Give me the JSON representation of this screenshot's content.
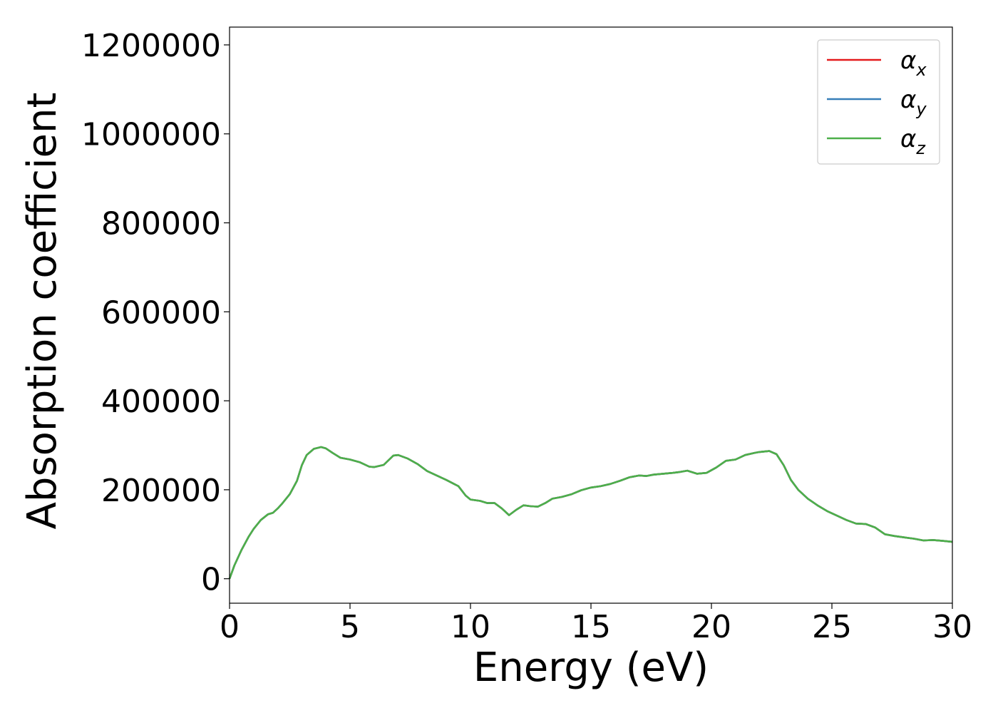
{
  "chart_data": {
    "type": "line",
    "xlabel": "Energy (eV)",
    "ylabel": "Absorption coefficient",
    "xlim": [
      0,
      30
    ],
    "ylim": [
      -55000,
      1240000
    ],
    "xticks": [
      0,
      5,
      10,
      15,
      20,
      25,
      30
    ],
    "xtick_labels": [
      "0",
      "5",
      "10",
      "15",
      "20",
      "25",
      "30"
    ],
    "yticks": [
      0,
      200000,
      400000,
      600000,
      800000,
      1000000,
      1200000
    ],
    "ytick_labels": [
      "0",
      "200000",
      "400000",
      "600000",
      "800000",
      "1000000",
      "1200000"
    ],
    "legend_position": "top-right",
    "grid": false,
    "series": [
      {
        "name": "α_x",
        "base": "α",
        "sub": "x",
        "color": "#e41a1c",
        "x": [
          0,
          0.2,
          0.5,
          0.8,
          1.0,
          1.3,
          1.6,
          1.8,
          2.0,
          2.2,
          2.5,
          2.8,
          3.0,
          3.2,
          3.5,
          3.8,
          4.0,
          4.3,
          4.6,
          5.0,
          5.4,
          5.8,
          6.0,
          6.4,
          6.8,
          7.0,
          7.4,
          7.8,
          8.2,
          8.6,
          9.0,
          9.5,
          9.8,
          10.0,
          10.4,
          10.7,
          11.0,
          11.3,
          11.6,
          11.9,
          12.2,
          12.5,
          12.8,
          13.1,
          13.4,
          13.8,
          14.2,
          14.6,
          15.0,
          15.4,
          15.8,
          16.2,
          16.6,
          17.0,
          17.3,
          17.6,
          18.0,
          18.4,
          18.7,
          19.0,
          19.4,
          19.8,
          20.2,
          20.6,
          21.0,
          21.4,
          21.8,
          22.0,
          22.4,
          22.7,
          23.0,
          23.3,
          23.6,
          24.0,
          24.4,
          24.8,
          25.2,
          25.6,
          26.0,
          26.4,
          26.8,
          27.2,
          27.6,
          28.0,
          28.4,
          28.8,
          29.2,
          29.6,
          30.0
        ],
        "y": [
          0,
          30000,
          65000,
          95000,
          112000,
          132000,
          145000,
          148000,
          158000,
          170000,
          190000,
          220000,
          255000,
          278000,
          292000,
          296000,
          293000,
          282000,
          272000,
          268000,
          262000,
          252000,
          251000,
          256000,
          277000,
          278000,
          270000,
          258000,
          242000,
          232000,
          222000,
          208000,
          187000,
          178000,
          175000,
          170000,
          170000,
          158000,
          143000,
          155000,
          165000,
          163000,
          162000,
          170000,
          180000,
          184000,
          190000,
          199000,
          205000,
          208000,
          213000,
          220000,
          228000,
          232000,
          231000,
          234000,
          236000,
          238000,
          240000,
          243000,
          236000,
          238000,
          250000,
          265000,
          268000,
          278000,
          283000,
          285000,
          287000,
          280000,
          255000,
          222000,
          200000,
          180000,
          165000,
          152000,
          142000,
          132000,
          124000,
          123000,
          115000,
          100000,
          96000,
          93000,
          90000,
          86000,
          87000,
          85000,
          83000
        ]
      },
      {
        "name": "α_y",
        "base": "α",
        "sub": "y",
        "color": "#377eb8",
        "x": [
          0,
          0.2,
          0.5,
          0.8,
          1.0,
          1.3,
          1.6,
          1.8,
          2.0,
          2.2,
          2.5,
          2.8,
          3.0,
          3.2,
          3.5,
          3.8,
          4.0,
          4.3,
          4.6,
          5.0,
          5.4,
          5.8,
          6.0,
          6.4,
          6.8,
          7.0,
          7.4,
          7.8,
          8.2,
          8.6,
          9.0,
          9.5,
          9.8,
          10.0,
          10.4,
          10.7,
          11.0,
          11.3,
          11.6,
          11.9,
          12.2,
          12.5,
          12.8,
          13.1,
          13.4,
          13.8,
          14.2,
          14.6,
          15.0,
          15.4,
          15.8,
          16.2,
          16.6,
          17.0,
          17.3,
          17.6,
          18.0,
          18.4,
          18.7,
          19.0,
          19.4,
          19.8,
          20.2,
          20.6,
          21.0,
          21.4,
          21.8,
          22.0,
          22.4,
          22.7,
          23.0,
          23.3,
          23.6,
          24.0,
          24.4,
          24.8,
          25.2,
          25.6,
          26.0,
          26.4,
          26.8,
          27.2,
          27.6,
          28.0,
          28.4,
          28.8,
          29.2,
          29.6,
          30.0
        ],
        "y": [
          0,
          30000,
          65000,
          95000,
          112000,
          132000,
          145000,
          148000,
          158000,
          170000,
          190000,
          220000,
          255000,
          278000,
          292000,
          296000,
          293000,
          282000,
          272000,
          268000,
          262000,
          252000,
          251000,
          256000,
          277000,
          278000,
          270000,
          258000,
          242000,
          232000,
          222000,
          208000,
          187000,
          178000,
          175000,
          170000,
          170000,
          158000,
          143000,
          155000,
          165000,
          163000,
          162000,
          170000,
          180000,
          184000,
          190000,
          199000,
          205000,
          208000,
          213000,
          220000,
          228000,
          232000,
          231000,
          234000,
          236000,
          238000,
          240000,
          243000,
          236000,
          238000,
          250000,
          265000,
          268000,
          278000,
          283000,
          285000,
          287000,
          280000,
          255000,
          222000,
          200000,
          180000,
          165000,
          152000,
          142000,
          132000,
          124000,
          123000,
          115000,
          100000,
          96000,
          93000,
          90000,
          86000,
          87000,
          85000,
          83000
        ]
      },
      {
        "name": "α_z",
        "base": "α",
        "sub": "z",
        "color": "#4daf4a",
        "x": [
          0,
          0.2,
          0.5,
          0.8,
          1.0,
          1.3,
          1.6,
          1.8,
          2.0,
          2.2,
          2.5,
          2.8,
          3.0,
          3.2,
          3.5,
          3.8,
          4.0,
          4.3,
          4.6,
          5.0,
          5.4,
          5.8,
          6.0,
          6.4,
          6.8,
          7.0,
          7.4,
          7.8,
          8.2,
          8.6,
          9.0,
          9.5,
          9.8,
          10.0,
          10.4,
          10.7,
          11.0,
          11.3,
          11.6,
          11.9,
          12.2,
          12.5,
          12.8,
          13.1,
          13.4,
          13.8,
          14.2,
          14.6,
          15.0,
          15.4,
          15.8,
          16.2,
          16.6,
          17.0,
          17.3,
          17.6,
          18.0,
          18.4,
          18.7,
          19.0,
          19.4,
          19.8,
          20.2,
          20.6,
          21.0,
          21.4,
          21.8,
          22.0,
          22.4,
          22.7,
          23.0,
          23.3,
          23.6,
          24.0,
          24.4,
          24.8,
          25.2,
          25.6,
          26.0,
          26.4,
          26.8,
          27.2,
          27.6,
          28.0,
          28.4,
          28.8,
          29.2,
          29.6,
          30.0
        ],
        "y": [
          0,
          30000,
          65000,
          95000,
          112000,
          132000,
          145000,
          148000,
          158000,
          170000,
          190000,
          220000,
          255000,
          278000,
          292000,
          296000,
          293000,
          282000,
          272000,
          268000,
          262000,
          252000,
          251000,
          256000,
          277000,
          278000,
          270000,
          258000,
          242000,
          232000,
          222000,
          208000,
          187000,
          178000,
          175000,
          170000,
          170000,
          158000,
          143000,
          155000,
          165000,
          163000,
          162000,
          170000,
          180000,
          184000,
          190000,
          199000,
          205000,
          208000,
          213000,
          220000,
          228000,
          232000,
          231000,
          234000,
          236000,
          238000,
          240000,
          243000,
          236000,
          238000,
          250000,
          265000,
          268000,
          278000,
          283000,
          285000,
          287000,
          280000,
          255000,
          222000,
          200000,
          180000,
          165000,
          152000,
          142000,
          132000,
          124000,
          123000,
          115000,
          100000,
          96000,
          93000,
          90000,
          86000,
          87000,
          85000,
          83000
        ]
      }
    ]
  }
}
